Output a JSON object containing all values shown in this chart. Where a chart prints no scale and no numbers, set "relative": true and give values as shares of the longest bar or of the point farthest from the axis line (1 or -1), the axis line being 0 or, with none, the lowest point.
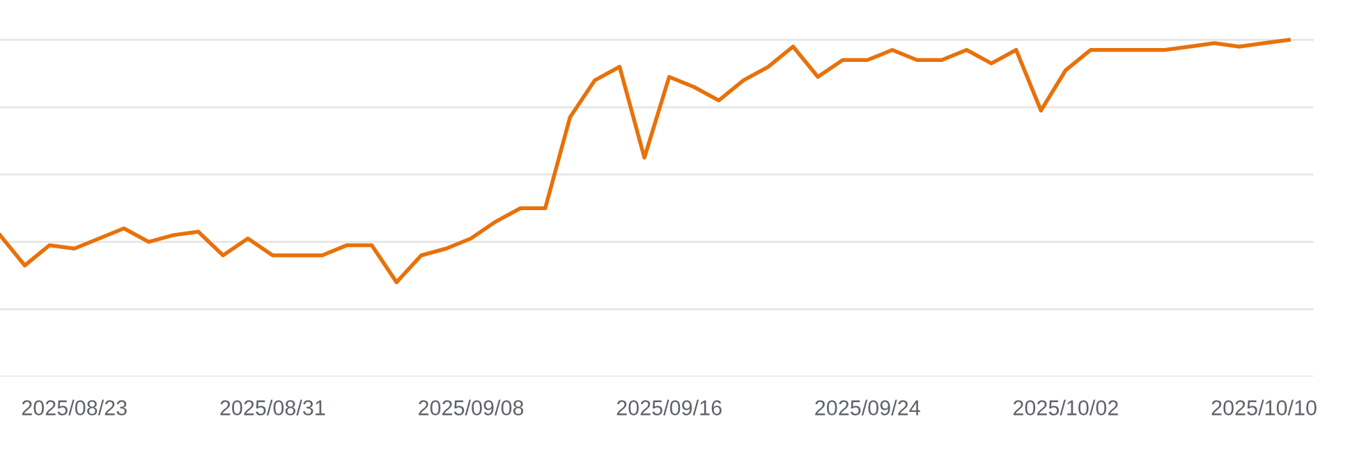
{
  "chart_data": {
    "type": "line",
    "relative": true,
    "grid": "y",
    "tick_labels": "x",
    "x": [
      "2025-08-20",
      "2025-08-21",
      "2025-08-22",
      "2025-08-23",
      "2025-08-24",
      "2025-08-25",
      "2025-08-26",
      "2025-08-27",
      "2025-08-28",
      "2025-08-29",
      "2025-08-30",
      "2025-08-31",
      "2025-09-01",
      "2025-09-02",
      "2025-09-03",
      "2025-09-04",
      "2025-09-05",
      "2025-09-06",
      "2025-09-07",
      "2025-09-08",
      "2025-09-09",
      "2025-09-10",
      "2025-09-11",
      "2025-09-12",
      "2025-09-13",
      "2025-09-14",
      "2025-09-15",
      "2025-09-16",
      "2025-09-17",
      "2025-09-18",
      "2025-09-19",
      "2025-09-20",
      "2025-09-21",
      "2025-09-22",
      "2025-09-23",
      "2025-09-24",
      "2025-09-25",
      "2025-09-26",
      "2025-09-27",
      "2025-09-28",
      "2025-09-29",
      "2025-09-30",
      "2025-10-01",
      "2025-10-02",
      "2025-10-03",
      "2025-10-04",
      "2025-10-05",
      "2025-10-06",
      "2025-10-07",
      "2025-10-08",
      "2025-10-09",
      "2025-10-10",
      "2025-10-11"
    ],
    "xlim": [
      "2025-08-20",
      "2025-10-12"
    ],
    "xticks": [
      {
        "value": "2025-08-23",
        "label": "2025/08/23"
      },
      {
        "value": "2025-08-31",
        "label": "2025/08/31"
      },
      {
        "value": "2025-09-08",
        "label": "2025/09/08"
      },
      {
        "value": "2025-09-16",
        "label": "2025/09/16"
      },
      {
        "value": "2025-09-24",
        "label": "2025/09/24"
      },
      {
        "value": "2025-10-02",
        "label": "2025/10/02"
      },
      {
        "value": "2025-10-10",
        "label": "2025/10/10"
      }
    ],
    "series": [
      {
        "color": "#e8710a",
        "values": [
          0.42,
          0.33,
          0.39,
          0.38,
          0.41,
          0.44,
          0.4,
          0.42,
          0.43,
          0.36,
          0.41,
          0.36,
          0.36,
          0.36,
          0.39,
          0.39,
          0.28,
          0.36,
          0.38,
          0.41,
          0.46,
          0.5,
          0.5,
          0.77,
          0.88,
          0.92,
          0.65,
          0.89,
          0.86,
          0.82,
          0.88,
          0.92,
          0.98,
          0.89,
          0.94,
          0.94,
          0.97,
          0.94,
          0.94,
          0.97,
          0.93,
          0.97,
          0.79,
          0.91,
          0.97,
          0.97,
          0.97,
          0.97,
          0.98,
          0.99,
          0.98,
          0.99,
          1
        ]
      }
    ]
  }
}
